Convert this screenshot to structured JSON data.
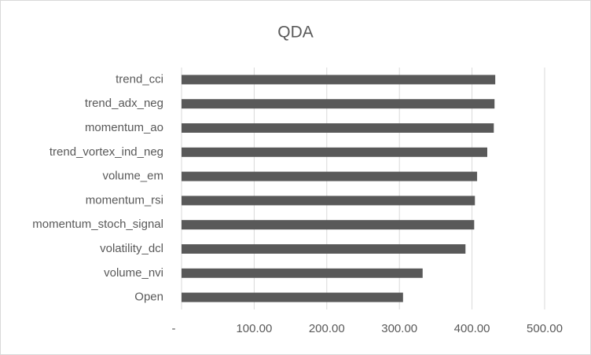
{
  "chart_data": {
    "type": "hbar",
    "title": "QDA",
    "categories": [
      "trend_cci",
      "trend_adx_neg",
      "momentum_ao",
      "trend_vortex_ind_neg",
      "volume_em",
      "momentum_rsi",
      "momentum_stoch_signal",
      "volatility_dcl",
      "volume_nvi",
      "Open"
    ],
    "values": [
      432,
      431,
      430,
      421,
      407,
      404,
      403,
      391,
      332,
      305
    ],
    "color": "#595959",
    "xlim": [
      0,
      500
    ],
    "xticks": [
      {
        "value": 0,
        "label": "-"
      },
      {
        "value": 100,
        "label": "100.00"
      },
      {
        "value": 200,
        "label": "200.00"
      },
      {
        "value": 300,
        "label": "300.00"
      },
      {
        "value": 400,
        "label": "400.00"
      },
      {
        "value": 500,
        "label": "500.00"
      }
    ],
    "grid": true
  }
}
